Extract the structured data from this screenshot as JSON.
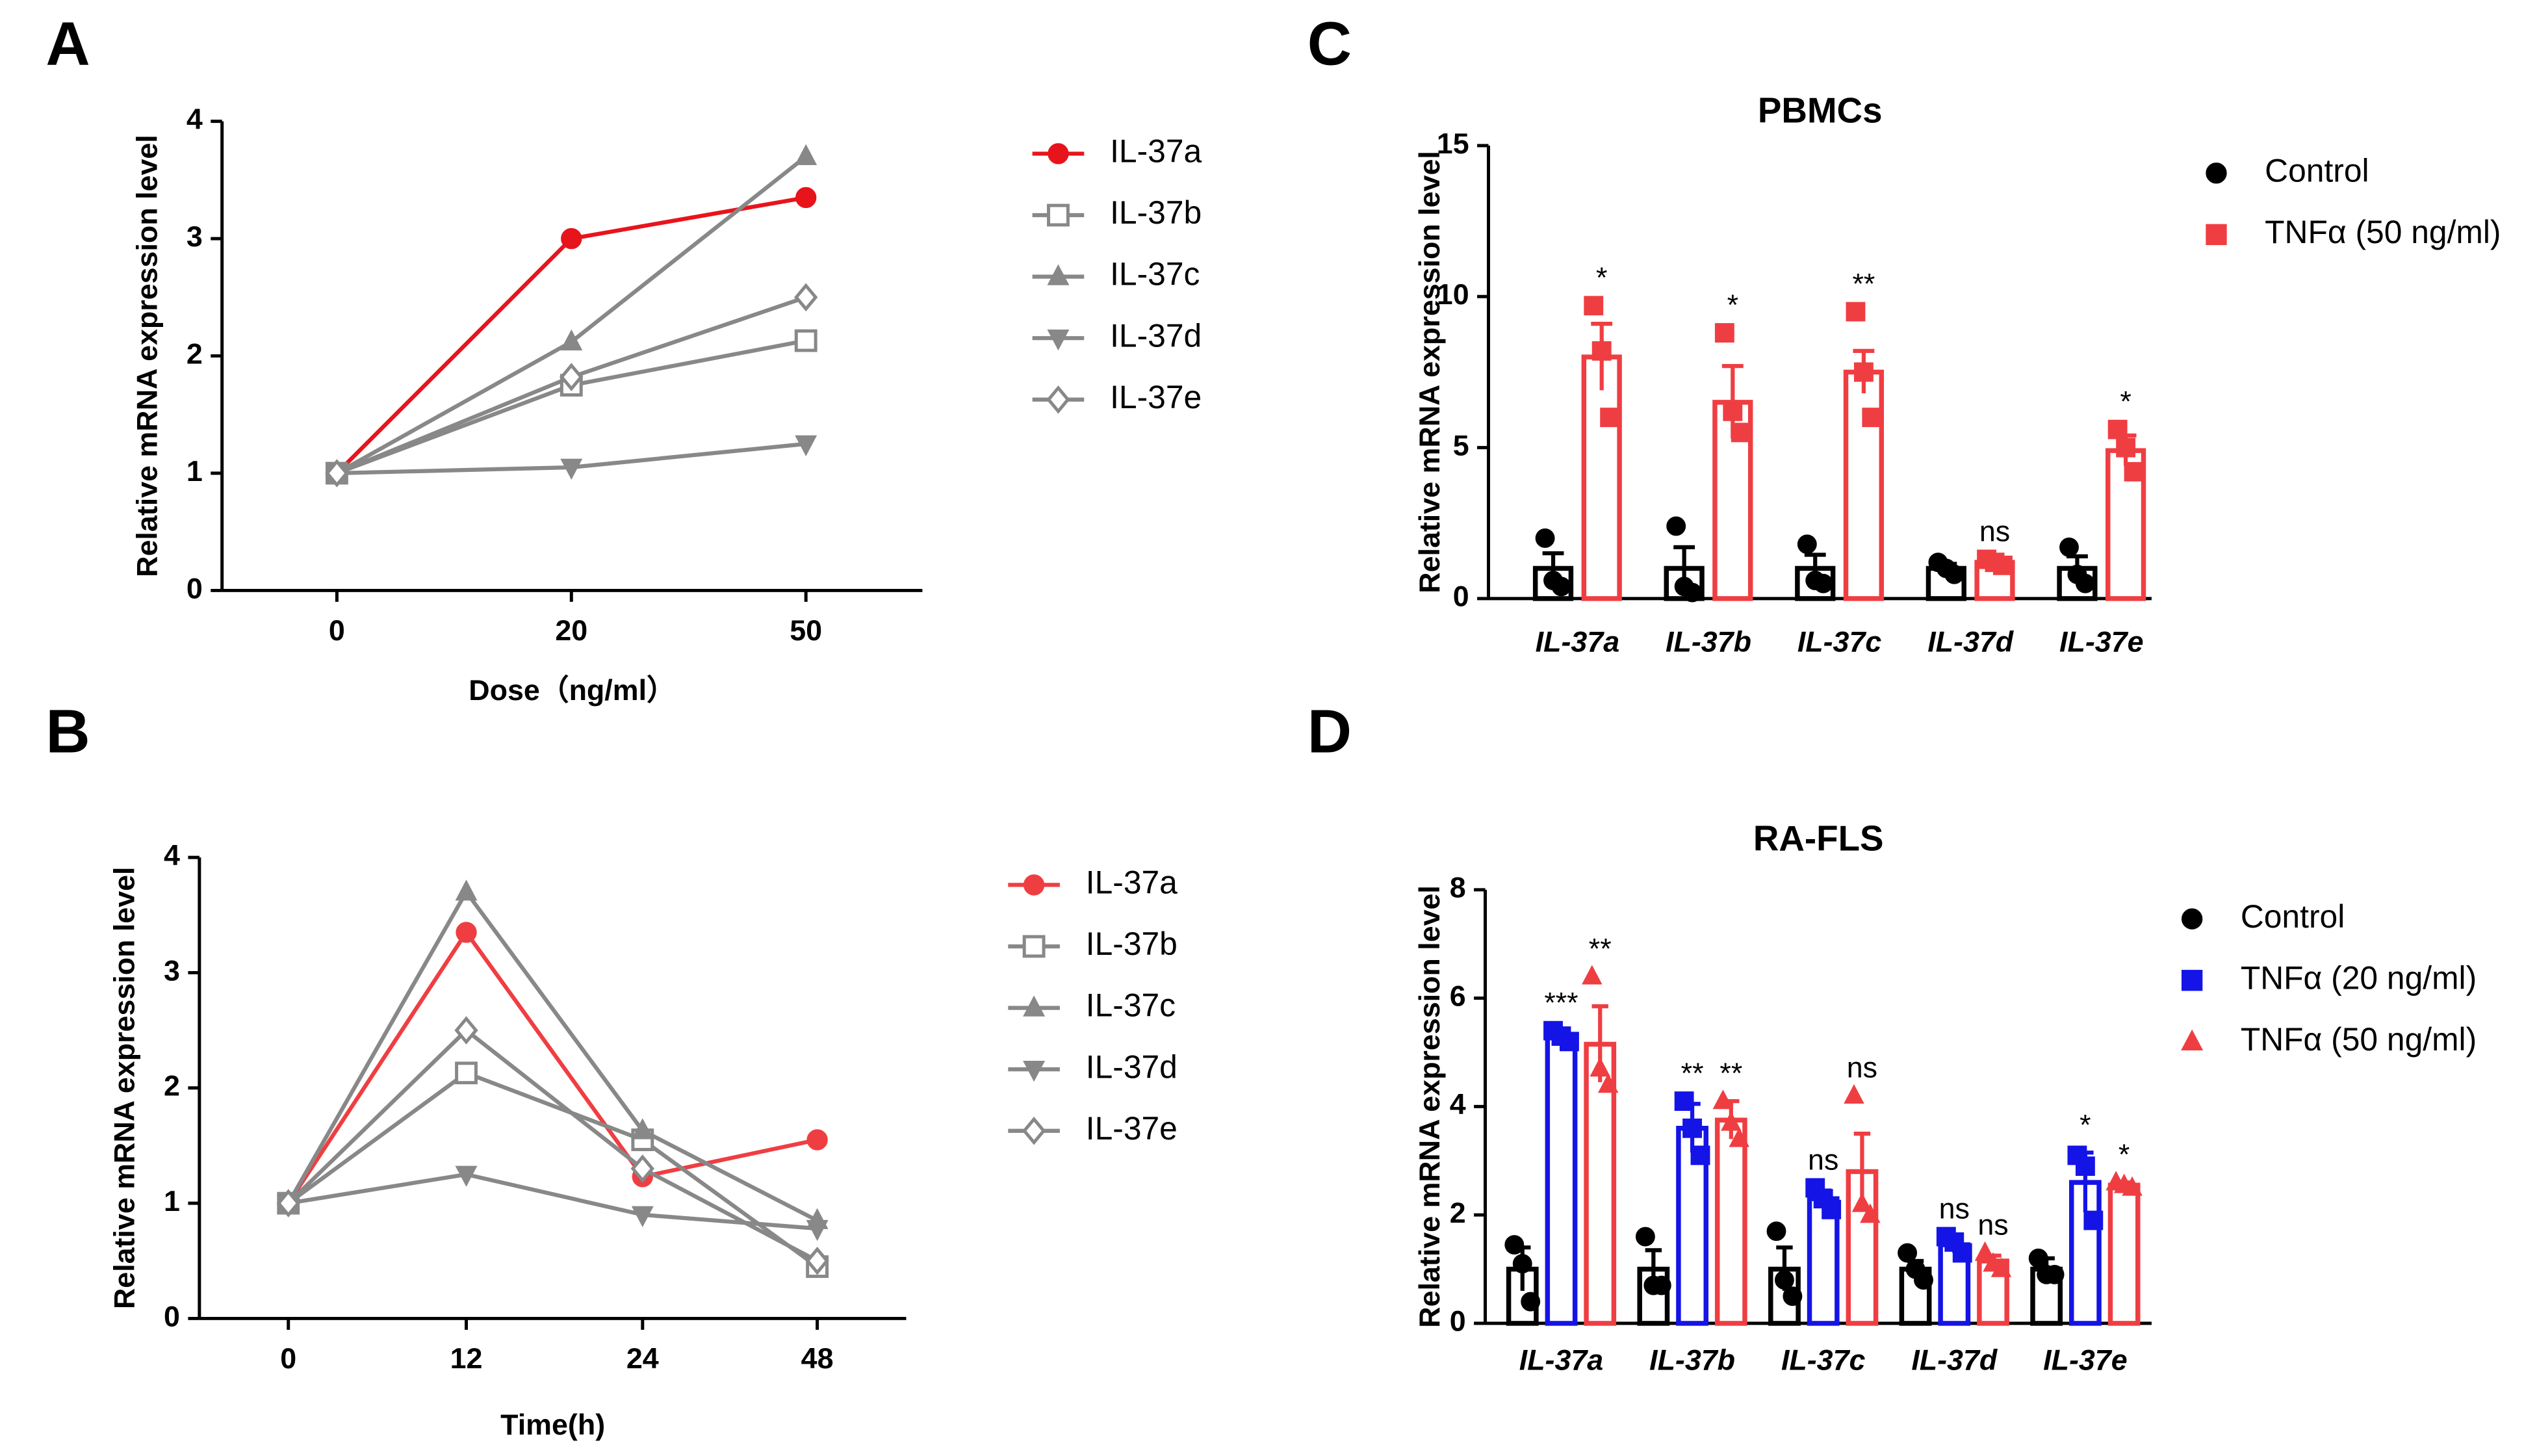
{
  "chart_data": [
    {
      "type": "line",
      "label": "A",
      "xlabel": "Dose（ng/ml）",
      "ylabel": "Relative mRNA expression level",
      "categories": [
        "0",
        "20",
        "50"
      ],
      "ylim": [
        0,
        4
      ],
      "yticks": [
        0,
        1,
        2,
        3,
        4
      ],
      "series": [
        {
          "name": "IL-37a",
          "color": "#e8141c",
          "marker": "circle",
          "values": [
            1,
            3.0,
            3.35
          ]
        },
        {
          "name": "IL-37b",
          "color": "#888888",
          "marker": "square-open",
          "values": [
            1,
            1.75,
            2.13
          ]
        },
        {
          "name": "IL-37c",
          "color": "#888888",
          "marker": "triangle-up",
          "values": [
            1,
            2.12,
            3.7
          ]
        },
        {
          "name": "IL-37d",
          "color": "#888888",
          "marker": "triangle-down",
          "values": [
            1,
            1.05,
            1.25
          ]
        },
        {
          "name": "IL-37e",
          "color": "#888888",
          "marker": "diamond-open",
          "values": [
            1,
            1.82,
            2.5
          ]
        }
      ]
    },
    {
      "type": "line",
      "label": "B",
      "xlabel": "Time(h)",
      "ylabel": "Relative mRNA expression level",
      "categories": [
        "0",
        "12",
        "24",
        "48"
      ],
      "ylim": [
        0,
        4
      ],
      "yticks": [
        0,
        1,
        2,
        3,
        4
      ],
      "series": [
        {
          "name": "IL-37a",
          "color": "#ef3e42",
          "marker": "circle",
          "values": [
            1,
            3.35,
            1.23,
            1.55
          ]
        },
        {
          "name": "IL-37b",
          "color": "#888888",
          "marker": "square-open",
          "values": [
            1,
            2.13,
            1.55,
            0.45
          ]
        },
        {
          "name": "IL-37c",
          "color": "#888888",
          "marker": "triangle-up",
          "values": [
            1,
            3.7,
            1.63,
            0.85
          ]
        },
        {
          "name": "IL-37d",
          "color": "#888888",
          "marker": "triangle-down",
          "values": [
            1,
            1.25,
            0.9,
            0.78
          ]
        },
        {
          "name": "IL-37e",
          "color": "#888888",
          "marker": "diamond-open",
          "values": [
            1,
            2.5,
            1.3,
            0.5
          ]
        }
      ]
    },
    {
      "type": "bar",
      "label": "C",
      "title": "PBMCs",
      "ylabel": "Relative mRNA expression level",
      "categories": [
        "IL-37a",
        "IL-37b",
        "IL-37c",
        "IL-37d",
        "IL-37e"
      ],
      "ylim": [
        0,
        15
      ],
      "yticks": [
        0,
        5,
        10,
        15
      ],
      "series": [
        {
          "name": "Control",
          "color": "#000000",
          "marker": "circle",
          "values": [
            1,
            1,
            1,
            1,
            1
          ],
          "errors": [
            0.5,
            0.7,
            0.45,
            0.15,
            0.4
          ],
          "points": [
            [
              2.0,
              0.6,
              0.4
            ],
            [
              2.4,
              0.4,
              0.2
            ],
            [
              1.8,
              0.6,
              0.5
            ],
            [
              1.2,
              1.0,
              0.8
            ],
            [
              1.7,
              0.8,
              0.5
            ]
          ]
        },
        {
          "name": "TNFα (50 ng/ml)",
          "color": "#ef3e42",
          "marker": "square",
          "values": [
            8.0,
            6.5,
            7.5,
            1.2,
            4.9
          ],
          "errors": [
            1.1,
            1.2,
            0.7,
            0.1,
            0.5
          ],
          "points": [
            [
              9.7,
              8.2,
              6.0
            ],
            [
              8.8,
              6.2,
              5.5
            ],
            [
              9.5,
              7.5,
              6.0
            ],
            [
              1.3,
              1.2,
              1.1
            ],
            [
              5.6,
              5.0,
              4.2
            ]
          ],
          "annotations": [
            "*",
            "*",
            "**",
            "ns",
            "*"
          ]
        }
      ]
    },
    {
      "type": "bar",
      "label": "D",
      "title": "RA-FLS",
      "ylabel": "Relative mRNA expression level",
      "categories": [
        "IL-37a",
        "IL-37b",
        "IL-37c",
        "IL-37d",
        "IL-37e"
      ],
      "ylim": [
        0,
        8
      ],
      "yticks": [
        0,
        2,
        4,
        6,
        8
      ],
      "series": [
        {
          "name": "Control",
          "color": "#000000",
          "marker": "circle",
          "values": [
            1,
            1,
            1,
            1,
            1
          ],
          "errors": [
            0.4,
            0.35,
            0.4,
            0.15,
            0.2
          ],
          "points": [
            [
              1.45,
              1.1,
              0.4
            ],
            [
              1.6,
              0.7,
              0.7
            ],
            [
              1.7,
              0.8,
              0.5
            ],
            [
              1.3,
              1.0,
              0.8
            ],
            [
              1.2,
              0.9,
              0.9
            ]
          ]
        },
        {
          "name": "TNFα (20 ng/ml)",
          "color": "#1414e6",
          "marker": "square",
          "values": [
            5.3,
            3.6,
            2.3,
            1.45,
            2.6
          ],
          "errors": [
            0.1,
            0.45,
            0.15,
            0.15,
            0.55
          ],
          "points": [
            [
              5.4,
              5.3,
              5.2
            ],
            [
              4.1,
              3.6,
              3.1
            ],
            [
              2.5,
              2.3,
              2.1
            ],
            [
              1.6,
              1.5,
              1.3
            ],
            [
              3.1,
              2.9,
              1.9
            ]
          ],
          "annotations": [
            "***",
            "**",
            "ns",
            "ns",
            "*"
          ]
        },
        {
          "name": "TNFα (50 ng/ml)",
          "color": "#ef3e42",
          "marker": "triangle-up",
          "values": [
            5.15,
            3.75,
            2.8,
            1.15,
            2.55
          ],
          "errors": [
            0.7,
            0.35,
            0.7,
            0.1,
            0.05
          ],
          "points": [
            [
              6.4,
              4.7,
              4.4
            ],
            [
              4.1,
              3.7,
              3.4
            ],
            [
              4.2,
              2.2,
              2.0
            ],
            [
              1.3,
              1.1,
              1.0
            ],
            [
              2.6,
              2.55,
              2.5
            ]
          ],
          "annotations": [
            "**",
            "**",
            "ns",
            "ns",
            "*"
          ]
        }
      ]
    }
  ]
}
